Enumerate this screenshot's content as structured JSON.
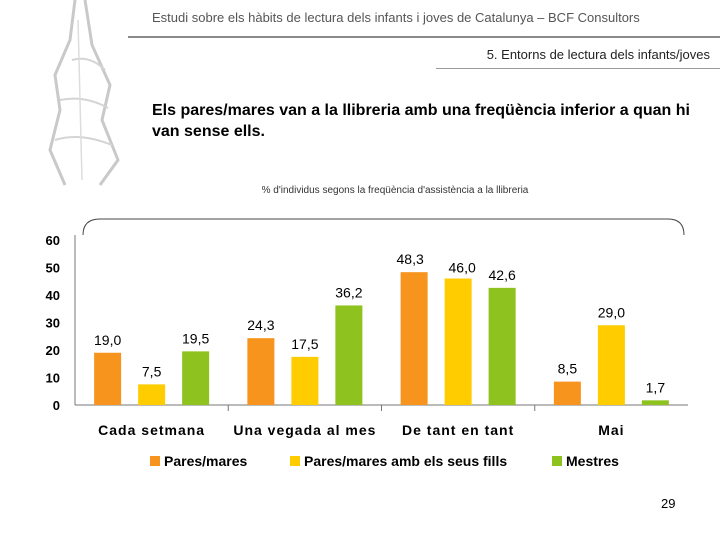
{
  "header": {
    "title": "Estudi sobre els hàbits de lectura dels infants i joves de Catalunya – BCF Consultors",
    "section": "5. Entorns de lectura dels infants/joves"
  },
  "slide": {
    "title": "Els pares/mares van a la llibreria amb una freqüència inferior a quan hi van sense ells.",
    "page_number": "29"
  },
  "chart_data": {
    "type": "bar",
    "title": "% d'individus segons la freqüència d'assistència a la llibreria",
    "categories": [
      "Cada setmana",
      "Una vegada al mes",
      "De tant en tant",
      "Mai"
    ],
    "series": [
      {
        "name": "Pares/mares",
        "color": "#f7941d",
        "values": [
          19.0,
          24.3,
          48.3,
          8.5
        ],
        "labels": [
          "19,0",
          "24,3",
          "48,3",
          "8,5"
        ]
      },
      {
        "name": "Pares/mares amb els seus fills",
        "color": "#ffcc00",
        "values": [
          7.5,
          17.5,
          46.0,
          29.0
        ],
        "labels": [
          "7,5",
          "17,5",
          "46,0",
          "29,0"
        ]
      },
      {
        "name": "Mestres",
        "color": "#8dc21f",
        "values": [
          19.5,
          36.2,
          42.6,
          1.7
        ],
        "labels": [
          "19,5",
          "36,2",
          "42,6",
          "1,7"
        ]
      }
    ],
    "yticks": [
      "60",
      "50",
      "40",
      "30",
      "20",
      "10",
      "0"
    ],
    "ylim": [
      0,
      60
    ],
    "legend_position": "bottom"
  }
}
